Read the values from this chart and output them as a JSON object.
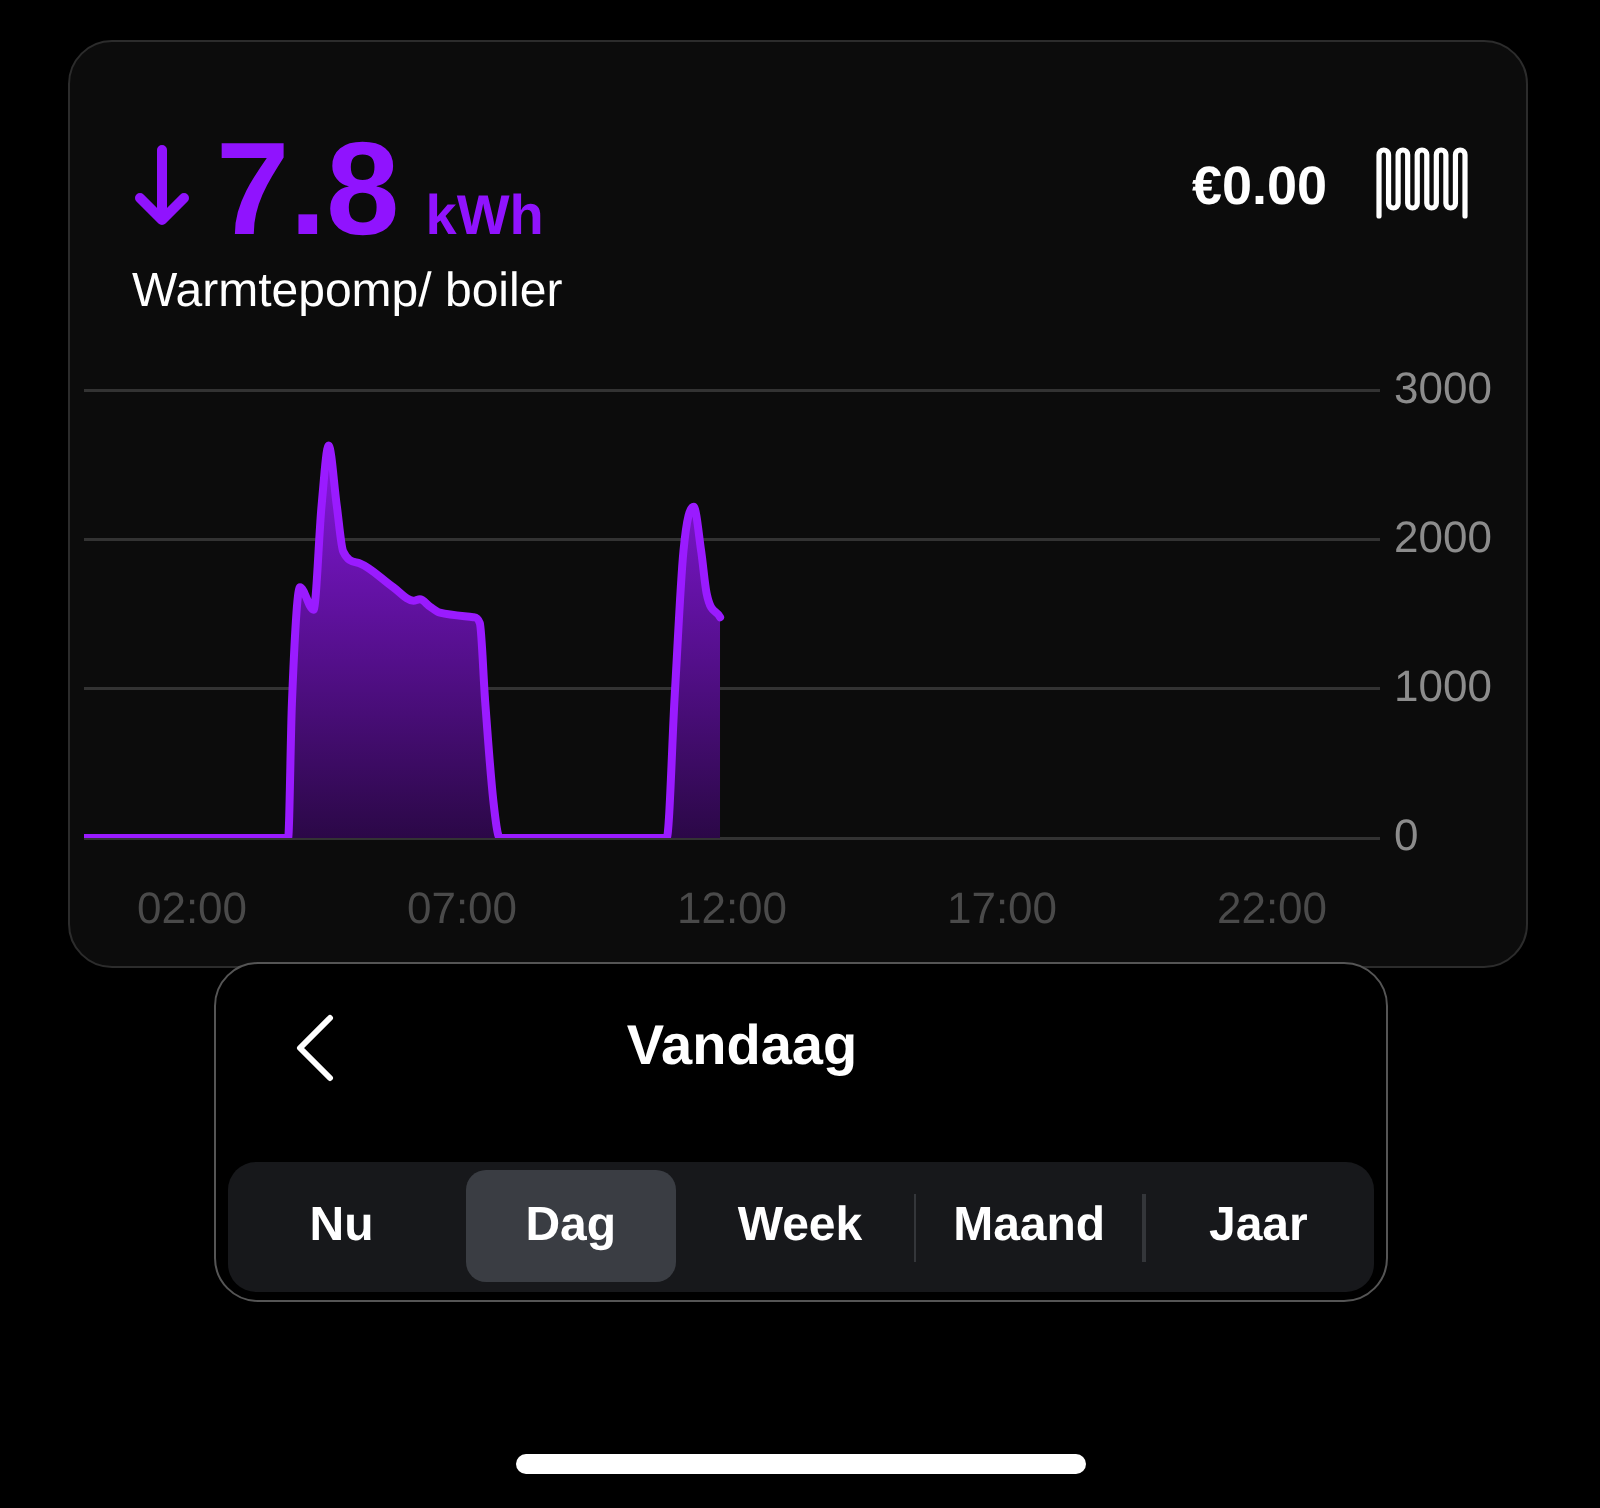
{
  "chart_data": {
    "type": "area",
    "title": "7.8 kWh",
    "subtitle": "Warmtepomp/ boiler",
    "annotations": [
      "€0.00",
      "Vandaag",
      "Nu",
      "Dag",
      "Week",
      "Maand",
      "Jaar"
    ],
    "x": [
      0,
      3.78,
      3.85,
      4.0,
      4.25,
      4.4,
      4.53,
      4.68,
      4.8,
      5.11,
      5.73,
      6.1,
      6.22,
      6.41,
      6.59,
      7.21,
      7.33,
      7.43,
      7.58,
      7.7,
      10.79,
      10.94,
      11.1,
      11.29,
      11.43,
      11.53,
      11.78
    ],
    "values": [
      0,
      0,
      900,
      1680,
      1530,
      2230,
      2630,
      2230,
      1920,
      1840,
      1680,
      1590,
      1600,
      1550,
      1510,
      1480,
      1440,
      910,
      250,
      0,
      0,
      960,
      1920,
      2220,
      1920,
      1640,
      1480
    ],
    "color": "#9a1bff",
    "xlim": [
      0,
      24
    ],
    "xticks": [
      {
        "value": 2,
        "label": "02:00"
      },
      {
        "value": 7,
        "label": "07:00"
      },
      {
        "value": 12,
        "label": "12:00"
      },
      {
        "value": 17,
        "label": "17:00"
      },
      {
        "value": 22,
        "label": "22:00"
      }
    ],
    "ylim": [
      0,
      3000
    ],
    "yticks": [
      0,
      1000,
      2000,
      3000
    ],
    "grid": "y",
    "legend": false,
    "marker": "none"
  }
}
